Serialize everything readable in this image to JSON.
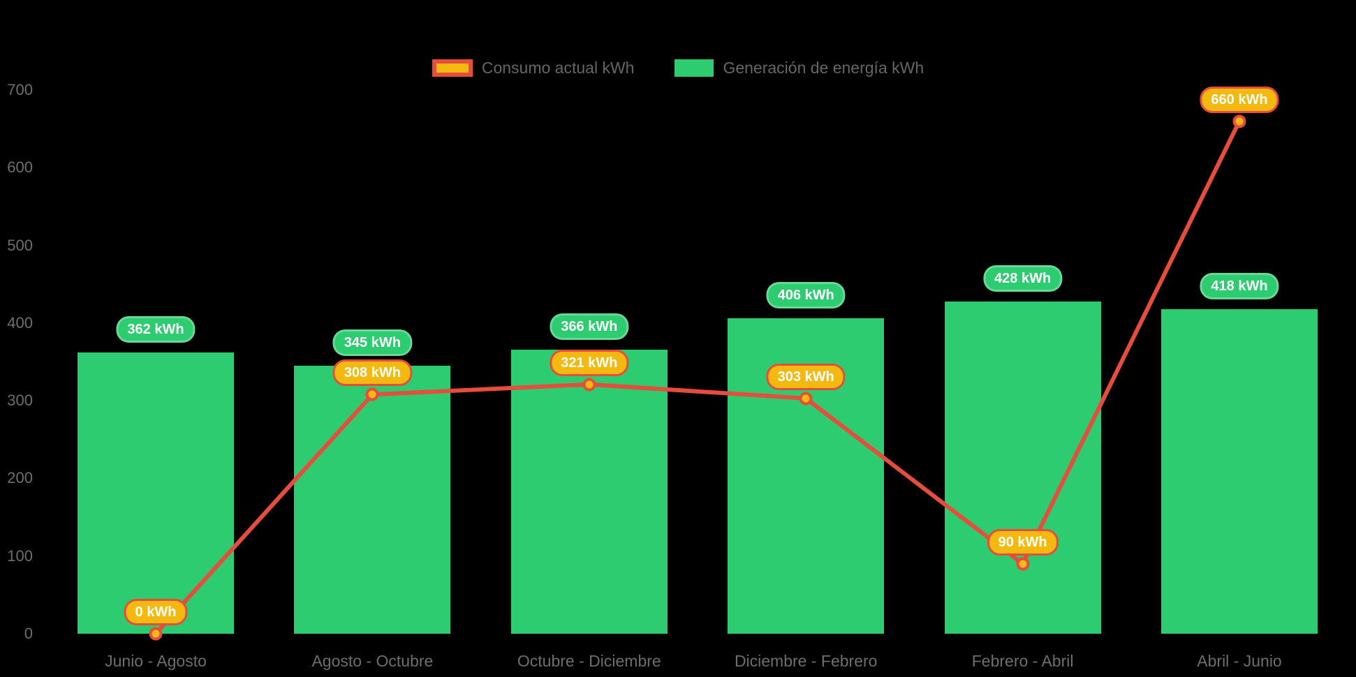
{
  "colors": {
    "background": "#000000",
    "bar_green": "#2ecc71",
    "line_red": "#e74c3c",
    "label_amber": "#f4b90f",
    "axis_text": "#6e6e6e",
    "legend_text": "#666666",
    "pill_text": "#ffffff"
  },
  "chart_data": {
    "type": "bar+line combo",
    "title": "",
    "xlabel": "",
    "ylabel": "",
    "categories": [
      "Junio - Agosto",
      "Agosto - Octubre",
      "Octubre - Diciembre",
      "Diciembre - Febrero",
      "Febrero - Abril",
      "Abril - Junio"
    ],
    "series": [
      {
        "name": "Consumo actual kWh",
        "type": "line",
        "color": "#e74c3c",
        "point_color": "#f4b90f",
        "values": [
          0,
          308,
          321,
          303,
          90,
          660
        ]
      },
      {
        "name": "Generación de energía kWh",
        "type": "bar",
        "color": "#2ecc71",
        "values": [
          362,
          345,
          366,
          406,
          428,
          418
        ]
      }
    ],
    "value_label_suffix": " kWh",
    "ylim": [
      0,
      700
    ],
    "yticks": [
      0,
      100,
      200,
      300,
      400,
      500,
      600,
      700
    ],
    "grid": false,
    "legend_position": "top"
  }
}
